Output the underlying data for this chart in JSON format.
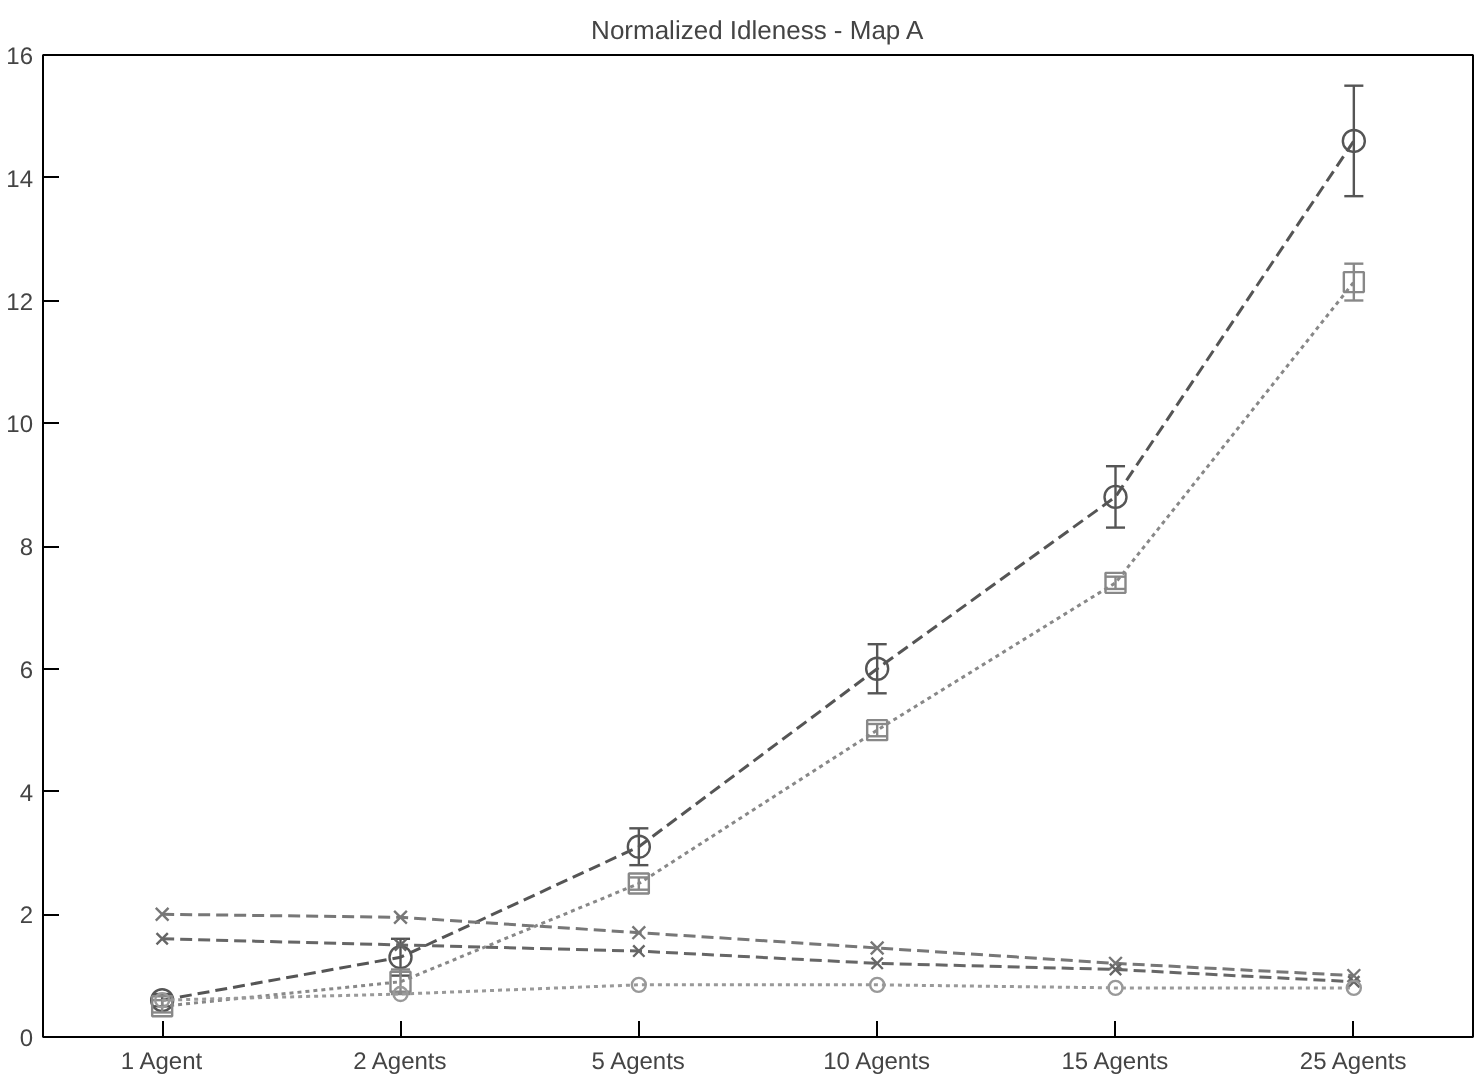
{
  "chart_data": {
    "type": "line",
    "title": "Normalized Idleness - Map A",
    "categories": [
      "1 Agent",
      "2 Agents",
      "5 Agents",
      "10 Agents",
      "15 Agents",
      "25 Agents"
    ],
    "ylim": [
      0,
      16
    ],
    "yticks": [
      0,
      2,
      4,
      6,
      8,
      10,
      12,
      14,
      16
    ],
    "grid": false,
    "series": [
      {
        "color": "#555555",
        "values": [
          0.6,
          1.3,
          3.1,
          6.0,
          8.8,
          14.6
        ],
        "errors": [
          0.1,
          0.3,
          0.3,
          0.4,
          0.5,
          0.9
        ],
        "line_style": "dashed",
        "marker": "circle"
      },
      {
        "color": "#888888",
        "values": [
          0.5,
          0.9,
          2.5,
          5.0,
          7.4,
          12.3
        ],
        "errors": [
          0.1,
          0.2,
          0.1,
          0.1,
          0.1,
          0.3
        ],
        "line_style": "dotted",
        "marker": "square"
      },
      {
        "color": "#777777",
        "values": [
          2.0,
          1.95,
          1.7,
          1.45,
          1.2,
          1.0
        ],
        "line_style": "dashed",
        "marker": "cross"
      },
      {
        "color": "#666666",
        "values": [
          1.6,
          1.5,
          1.4,
          1.2,
          1.1,
          0.9
        ],
        "line_style": "dashed",
        "marker": "cross"
      },
      {
        "color": "#999999",
        "values": [
          0.6,
          0.7,
          0.85,
          0.85,
          0.8,
          0.8
        ],
        "line_style": "dotted",
        "marker": "circle"
      }
    ]
  }
}
